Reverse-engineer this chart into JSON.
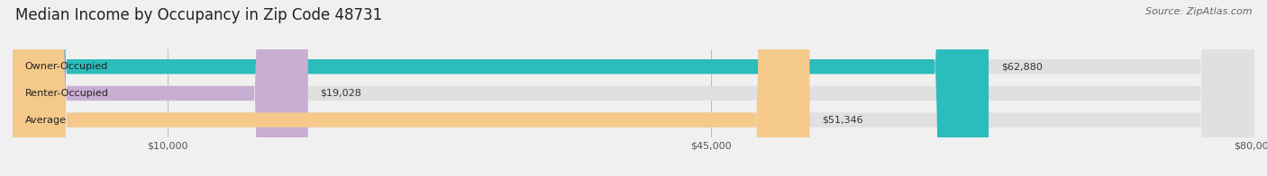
{
  "title": "Median Income by Occupancy in Zip Code 48731",
  "source": "Source: ZipAtlas.com",
  "categories": [
    "Owner-Occupied",
    "Renter-Occupied",
    "Average"
  ],
  "values": [
    62880,
    19028,
    51346
  ],
  "bar_colors": [
    "#2bbcbc",
    "#c9aed4",
    "#f5c98a"
  ],
  "value_labels": [
    "$62,880",
    "$19,028",
    "$51,346"
  ],
  "xlim": [
    0,
    80000
  ],
  "xticks": [
    10000,
    45000,
    80000
  ],
  "xtick_labels": [
    "$10,000",
    "$45,000",
    "$80,000"
  ],
  "background_color": "#f0f0f0",
  "bar_background_color": "#e0e0e0",
  "title_fontsize": 12,
  "source_fontsize": 8,
  "label_fontsize": 8,
  "value_fontsize": 8,
  "bar_height": 0.55,
  "figsize": [
    14.06,
    1.96
  ],
  "dpi": 100
}
